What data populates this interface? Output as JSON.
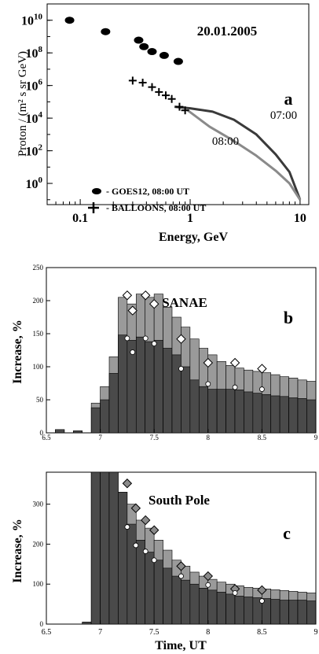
{
  "chart_data": [
    {
      "type": "scatter",
      "panel_letter": "a",
      "title": "20.01.2005",
      "xlabel": "Energy, GeV",
      "ylabel": "Proton / (m² s sr GeV)",
      "x_scale": "log",
      "y_scale": "log",
      "xlim": [
        0.05,
        12
      ],
      "ylim": [
        0.05,
        100000000000.0
      ],
      "x_ticks": [
        {
          "v": 0.1,
          "label": "0.1"
        },
        {
          "v": 1,
          "label": "1"
        },
        {
          "v": 10,
          "label": "10"
        }
      ],
      "y_ticks": [
        {
          "v": 1,
          "base": "10",
          "exp": "0"
        },
        {
          "v": 100,
          "base": "10",
          "exp": "2"
        },
        {
          "v": 10000,
          "base": "10",
          "exp": "4"
        },
        {
          "v": 1000000,
          "base": "10",
          "exp": "6"
        },
        {
          "v": 100000000,
          "base": "10",
          "exp": "8"
        },
        {
          "v": 10000000000,
          "base": "10",
          "exp": "10"
        }
      ],
      "series": [
        {
          "name": "- GOES12, 08:00 UT",
          "marker": "dot",
          "x": [
            0.08,
            0.17,
            0.34,
            0.38,
            0.45,
            0.58,
            0.78
          ],
          "y": [
            10000000000,
            2000000000,
            600000000,
            240000000,
            120000000,
            70000000,
            30000000
          ]
        },
        {
          "name": "- BALLOONS, 08:00 UT",
          "marker": "plus",
          "x": [
            0.3,
            0.37,
            0.45,
            0.52,
            0.6,
            0.68,
            0.8,
            0.9
          ],
          "y": [
            2000000,
            1500000,
            800000,
            400000,
            250000,
            150000,
            50000,
            30000
          ]
        },
        {
          "name": "07:00",
          "marker": "line",
          "x": [
            0.72,
            1.0,
            1.6,
            2.5,
            4.0,
            6.0,
            8.0,
            10.0
          ],
          "y": [
            50000,
            40000,
            25000,
            8000,
            1000,
            60,
            5,
            0.1
          ]
        },
        {
          "name": "08:00",
          "marker": "line",
          "x": [
            0.95,
            1.5,
            2.5,
            4.0,
            6.0,
            8.0,
            10.0
          ],
          "y": [
            30000,
            3000,
            400,
            50,
            6,
            1,
            0.1
          ]
        }
      ],
      "annotations": [
        "07:00",
        "08:00"
      ]
    },
    {
      "type": "bar",
      "panel_letter": "b",
      "title": "SANAE",
      "ylabel": "Increase, %",
      "xlim": [
        6.5,
        9
      ],
      "ylim": [
        0,
        250
      ],
      "x_ticks": [
        6.5,
        7,
        7.5,
        8,
        8.5,
        9
      ],
      "x_tick_labels": [
        "6.5",
        "7",
        "7.5",
        "8",
        "8.5",
        "9"
      ],
      "y_ticks": [
        0,
        50,
        100,
        150,
        200,
        250
      ],
      "bin_start": 6.5,
      "bin_width": 0.0833,
      "series": [
        {
          "name": "upper",
          "values": [
            0,
            5,
            0,
            3,
            0,
            45,
            70,
            115,
            205,
            195,
            210,
            205,
            210,
            190,
            175,
            160,
            142,
            128,
            118,
            108,
            102,
            98,
            95,
            93,
            91,
            88,
            85,
            83,
            80,
            78
          ]
        },
        {
          "name": "lower",
          "values": [
            0,
            5,
            0,
            3,
            0,
            38,
            50,
            90,
            148,
            140,
            145,
            138,
            140,
            128,
            118,
            100,
            80,
            70,
            66,
            66,
            66,
            65,
            62,
            60,
            58,
            56,
            55,
            53,
            52,
            50
          ]
        }
      ],
      "markers": [
        {
          "name": "diamonds",
          "x": [
            7.25,
            7.3,
            7.42,
            7.5,
            7.75,
            8.0,
            8.25,
            8.5
          ],
          "y": [
            208,
            185,
            208,
            195,
            142,
            106,
            106,
            97
          ]
        },
        {
          "name": "circles",
          "x": [
            7.25,
            7.3,
            7.42,
            7.5,
            7.75,
            8.0,
            8.25,
            8.5
          ],
          "y": [
            143,
            122,
            143,
            135,
            97,
            74,
            69,
            66
          ]
        }
      ]
    },
    {
      "type": "bar",
      "panel_letter": "c",
      "title": "South Pole",
      "xlabel": "Time, UT",
      "ylabel": "Increase, %",
      "xlim": [
        6.5,
        9
      ],
      "ylim": [
        0,
        380
      ],
      "x_ticks": [
        6.5,
        7,
        7.5,
        8,
        8.5,
        9
      ],
      "x_tick_labels": [
        "6.5",
        "7",
        "7.5",
        "8",
        "8.5",
        "9"
      ],
      "y_ticks": [
        0,
        100,
        200,
        300
      ],
      "bin_start": 6.5,
      "bin_width": 0.0833,
      "series": [
        {
          "name": "upper",
          "values": [
            0,
            0,
            0,
            0,
            5,
            380,
            380,
            380,
            330,
            300,
            260,
            240,
            210,
            185,
            160,
            145,
            130,
            120,
            112,
            105,
            100,
            96,
            92,
            90,
            88,
            86,
            84,
            82,
            80,
            78
          ]
        },
        {
          "name": "lower",
          "values": [
            0,
            0,
            0,
            0,
            5,
            380,
            380,
            380,
            330,
            250,
            210,
            180,
            160,
            140,
            120,
            110,
            100,
            90,
            85,
            80,
            75,
            70,
            68,
            66,
            64,
            62,
            60,
            60,
            60,
            58
          ]
        }
      ],
      "markers": [
        {
          "name": "diamonds",
          "x": [
            7.25,
            7.33,
            7.42,
            7.5,
            7.75,
            8.0,
            8.25,
            8.5
          ],
          "y": [
            352,
            290,
            260,
            235,
            145,
            120,
            88,
            85
          ]
        },
        {
          "name": "circles",
          "x": [
            7.25,
            7.33,
            7.42,
            7.5,
            7.75,
            8.0,
            8.25,
            8.5
          ],
          "y": [
            243,
            197,
            182,
            160,
            120,
            98,
            78,
            58
          ]
        }
      ]
    }
  ]
}
